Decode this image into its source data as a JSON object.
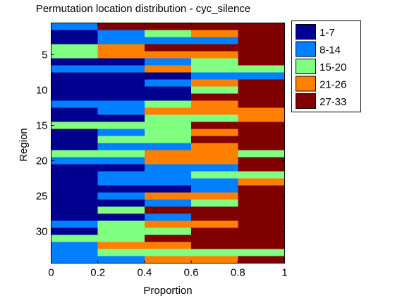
{
  "chart_data": {
    "type": "heatmap",
    "title": "Permutation location distribution - cyc_silence",
    "xlabel": "Proportion",
    "ylabel": "Region",
    "xlim": [
      0,
      1
    ],
    "ylim": [
      0.5,
      34.5
    ],
    "y_reversed": true,
    "x_ticks": [
      "0",
      "0.2",
      "0.4",
      "0.6",
      "0.8",
      "1"
    ],
    "y_ticks": [
      "5",
      "10",
      "15",
      "20",
      "25",
      "30"
    ],
    "x_bins": [
      0,
      0.2,
      0.4,
      0.6,
      0.8,
      1
    ],
    "legend": {
      "position": "right",
      "entries": [
        {
          "label": "1-7",
          "color": "#00008f"
        },
        {
          "label": "8-14",
          "color": "#0080ff"
        },
        {
          "label": "15-20",
          "color": "#80ff80"
        },
        {
          "label": "21-26",
          "color": "#ff8000"
        },
        {
          "label": "27-33",
          "color": "#800000"
        }
      ]
    },
    "category_order": [
      "1-7",
      "8-14",
      "15-20",
      "21-26",
      "27-33"
    ],
    "rows": [
      [
        2,
        5,
        5,
        5,
        5
      ],
      [
        1,
        2,
        3,
        4,
        5
      ],
      [
        1,
        2,
        2,
        2,
        5
      ],
      [
        3,
        4,
        5,
        5,
        5
      ],
      [
        3,
        4,
        4,
        4,
        5
      ],
      [
        1,
        1,
        2,
        3,
        5
      ],
      [
        2,
        2,
        4,
        3,
        3
      ],
      [
        1,
        1,
        1,
        2,
        2
      ],
      [
        1,
        1,
        2,
        4,
        5
      ],
      [
        1,
        1,
        1,
        3,
        5
      ],
      [
        1,
        1,
        1,
        5,
        5
      ],
      [
        2,
        2,
        3,
        4,
        5
      ],
      [
        1,
        2,
        4,
        4,
        4
      ],
      [
        1,
        1,
        3,
        3,
        4
      ],
      [
        3,
        3,
        3,
        5,
        5
      ],
      [
        1,
        2,
        3,
        4,
        5
      ],
      [
        1,
        3,
        3,
        5,
        5
      ],
      [
        1,
        2,
        2,
        4,
        5
      ],
      [
        3,
        3,
        4,
        4,
        3
      ],
      [
        2,
        2,
        4,
        4,
        5
      ],
      [
        1,
        1,
        2,
        2,
        5
      ],
      [
        1,
        2,
        2,
        3,
        3
      ],
      [
        1,
        2,
        2,
        2,
        4
      ],
      [
        1,
        1,
        1,
        2,
        5
      ],
      [
        1,
        2,
        4,
        4,
        5
      ],
      [
        1,
        1,
        2,
        3,
        5
      ],
      [
        1,
        3,
        5,
        5,
        5
      ],
      [
        1,
        1,
        2,
        5,
        5
      ],
      [
        2,
        3,
        4,
        4,
        5
      ],
      [
        1,
        3,
        3,
        5,
        5
      ],
      [
        3,
        3,
        5,
        5,
        5
      ],
      [
        2,
        4,
        4,
        5,
        5
      ],
      [
        2,
        3,
        3,
        3,
        3
      ],
      [
        2,
        2,
        4,
        4,
        5
      ]
    ]
  }
}
